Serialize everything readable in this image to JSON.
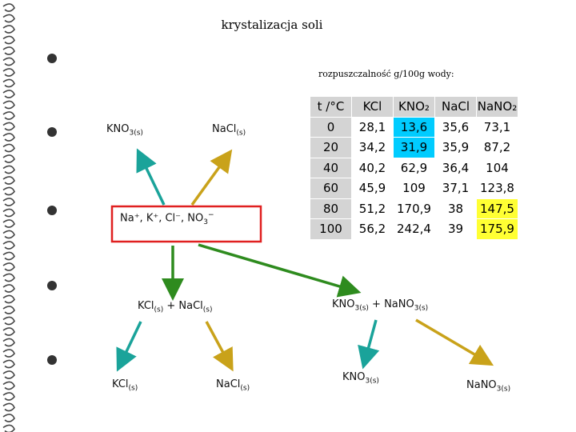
{
  "title": "krystalizacja soli",
  "subtitle": "rozpuszczalność g/100g wody:",
  "table": {
    "header": [
      "t /°C",
      "KCl",
      "KNO₂",
      "NaCl",
      "NaNO₂"
    ],
    "rows": [
      [
        "0",
        "28,1",
        "13,6",
        "35,6",
        "73,1"
      ],
      [
        "20",
        "34,2",
        "31,9",
        "35,9",
        "87,2"
      ],
      [
        "40",
        "40,2",
        "62,9",
        "36,4",
        "104"
      ],
      [
        "60",
        "45,9",
        "109",
        "37,1",
        "123,8"
      ],
      [
        "80",
        "51,2",
        "170,9",
        "38",
        "147,5"
      ],
      [
        "100",
        "56,2",
        "242,4",
        "39",
        "175,9"
      ]
    ]
  },
  "nodes": [
    {
      "parts": [
        {
          "text": "KNO"
        },
        {
          "sub": "3(s)"
        }
      ]
    },
    {
      "parts": [
        {
          "text": "NaCl"
        },
        {
          "sub": "(s)"
        }
      ]
    },
    {
      "parts": [
        {
          "text": "Na⁺, K⁺, Cl⁻, NO"
        },
        {
          "sub": "3"
        },
        {
          "sup": "−"
        }
      ]
    },
    {
      "parts": [
        {
          "text": "KCl"
        },
        {
          "sub": "(s)"
        },
        {
          "text": " + NaCl"
        },
        {
          "sub": "(s)"
        }
      ]
    },
    {
      "parts": [
        {
          "text": "KNO"
        },
        {
          "sub": "3(s)"
        },
        {
          "text": " + NaNO"
        },
        {
          "sub": "3(s)"
        }
      ]
    },
    {
      "parts": [
        {
          "text": "KCl"
        },
        {
          "sub": "(s)"
        }
      ]
    },
    {
      "parts": [
        {
          "text": "NaCl"
        },
        {
          "sub": "(s)"
        }
      ]
    },
    {
      "parts": [
        {
          "text": "KNO"
        },
        {
          "sub": "3(s)"
        }
      ]
    },
    {
      "parts": [
        {
          "text": "NaNO"
        },
        {
          "sub": "3(s)"
        }
      ]
    }
  ]
}
